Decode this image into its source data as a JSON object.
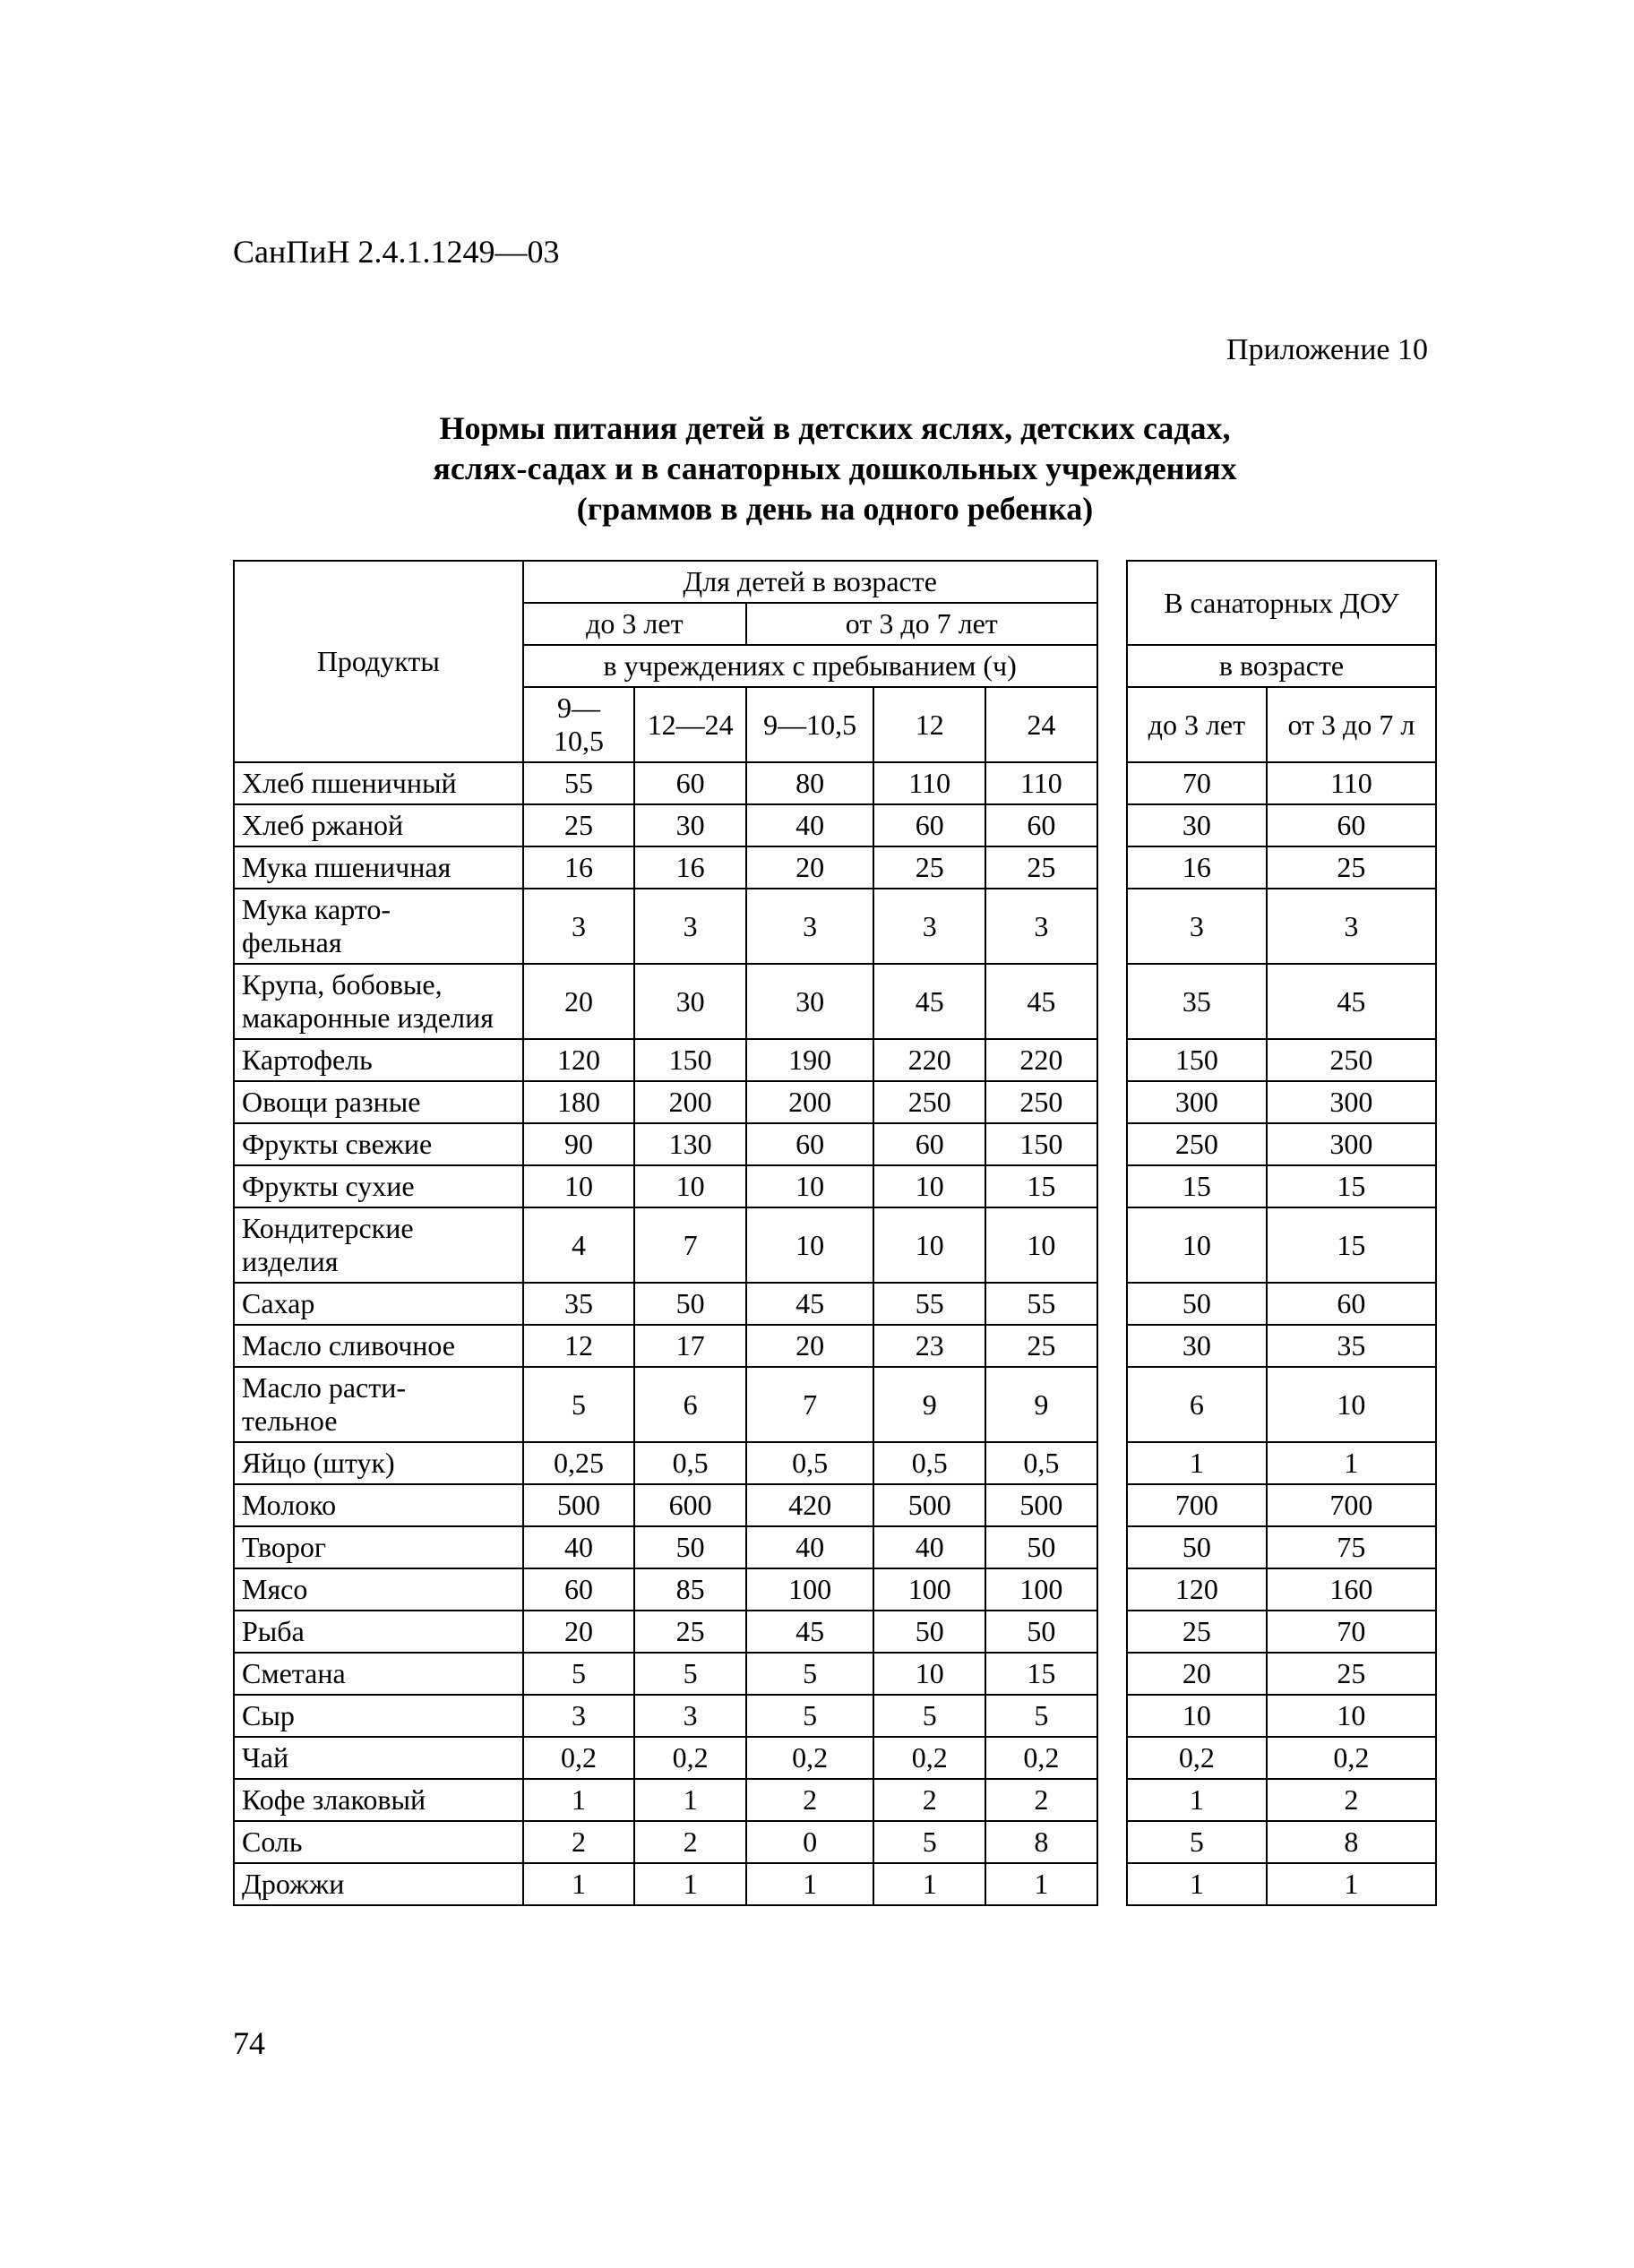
{
  "doc_code": "СанПиН 2.4.1.1249—03",
  "appendix": "Приложение 10",
  "title_line1": "Нормы питания детей в детских яслях, детских садах,",
  "title_line2": "яслях-садах и в санаторных дошкольных учреждениях",
  "title_line3": "(граммов в день на одного ребенка)",
  "page_number": "74",
  "colors": {
    "bg": "#ffffff",
    "text": "#000000",
    "border": "#000000"
  },
  "table": {
    "header": {
      "products": "Продукты",
      "for_age": "Для детей в возрасте",
      "sanatorium": "В санаторных ДОУ",
      "under3": "до 3 лет",
      "from3to7": "от 3 до 7 лет",
      "stay_hours": "в учреждениях с пребыванием (ч)",
      "by_age": "в возрасте",
      "c1": "9—10,5",
      "c2": "12—24",
      "c3": "9—10,5",
      "c4": "12",
      "c5": "24",
      "c6": "до 3 лет",
      "c7": "от 3 до 7 л"
    },
    "rows": [
      {
        "name": "Хлеб пшеничный",
        "v": [
          "55",
          "60",
          "80",
          "110",
          "110",
          "70",
          "110"
        ]
      },
      {
        "name": "Хлеб ржаной",
        "v": [
          "25",
          "30",
          "40",
          "60",
          "60",
          "30",
          "60"
        ]
      },
      {
        "name": "Мука пшеничная",
        "v": [
          "16",
          "16",
          "20",
          "25",
          "25",
          "16",
          "25"
        ]
      },
      {
        "name": "Мука карто-\nфельная",
        "v": [
          "3",
          "3",
          "3",
          "3",
          "3",
          "3",
          "3"
        ]
      },
      {
        "name": "Крупа, бобовые, макаронные изделия",
        "v": [
          "20",
          "30",
          "30",
          "45",
          "45",
          "35",
          "45"
        ]
      },
      {
        "name": "Картофель",
        "v": [
          "120",
          "150",
          "190",
          "220",
          "220",
          "150",
          "250"
        ]
      },
      {
        "name": "Овощи разные",
        "v": [
          "180",
          "200",
          "200",
          "250",
          "250",
          "300",
          "300"
        ]
      },
      {
        "name": "Фрукты свежие",
        "v": [
          "90",
          "130",
          "60",
          "60",
          "150",
          "250",
          "300"
        ]
      },
      {
        "name": "Фрукты сухие",
        "v": [
          "10",
          "10",
          "10",
          "10",
          "15",
          "15",
          "15"
        ]
      },
      {
        "name": "Кондитерские изделия",
        "v": [
          "4",
          "7",
          "10",
          "10",
          "10",
          "10",
          "15"
        ]
      },
      {
        "name": "Сахар",
        "v": [
          "35",
          "50",
          "45",
          "55",
          "55",
          "50",
          "60"
        ]
      },
      {
        "name": "Масло сливочное",
        "v": [
          "12",
          "17",
          "20",
          "23",
          "25",
          "30",
          "35"
        ]
      },
      {
        "name": "Масло расти-\nтельное",
        "v": [
          "5",
          "6",
          "7",
          "9",
          "9",
          "6",
          "10"
        ]
      },
      {
        "name": "Яйцо (штук)",
        "v": [
          "0,25",
          "0,5",
          "0,5",
          "0,5",
          "0,5",
          "1",
          "1"
        ]
      },
      {
        "name": "Молоко",
        "v": [
          "500",
          "600",
          "420",
          "500",
          "500",
          "700",
          "700"
        ]
      },
      {
        "name": "Творог",
        "v": [
          "40",
          "50",
          "40",
          "40",
          "50",
          "50",
          "75"
        ]
      },
      {
        "name": "Мясо",
        "v": [
          "60",
          "85",
          "100",
          "100",
          "100",
          "120",
          "160"
        ]
      },
      {
        "name": "Рыба",
        "v": [
          "20",
          "25",
          "45",
          "50",
          "50",
          "25",
          "70"
        ]
      },
      {
        "name": "Сметана",
        "v": [
          "5",
          "5",
          "5",
          "10",
          "15",
          "20",
          "25"
        ]
      },
      {
        "name": "Сыр",
        "v": [
          "3",
          "3",
          "5",
          "5",
          "5",
          "10",
          "10"
        ]
      },
      {
        "name": "Чай",
        "v": [
          "0,2",
          "0,2",
          "0,2",
          "0,2",
          "0,2",
          "0,2",
          "0,2"
        ]
      },
      {
        "name": "Кофе злаковый",
        "v": [
          "1",
          "1",
          "2",
          "2",
          "2",
          "1",
          "2"
        ]
      },
      {
        "name": "Соль",
        "v": [
          "2",
          "2",
          "0",
          "5",
          "8",
          "5",
          "8"
        ]
      },
      {
        "name": "Дрожжи",
        "v": [
          "1",
          "1",
          "1",
          "1",
          "1",
          "1",
          "1"
        ]
      }
    ]
  }
}
